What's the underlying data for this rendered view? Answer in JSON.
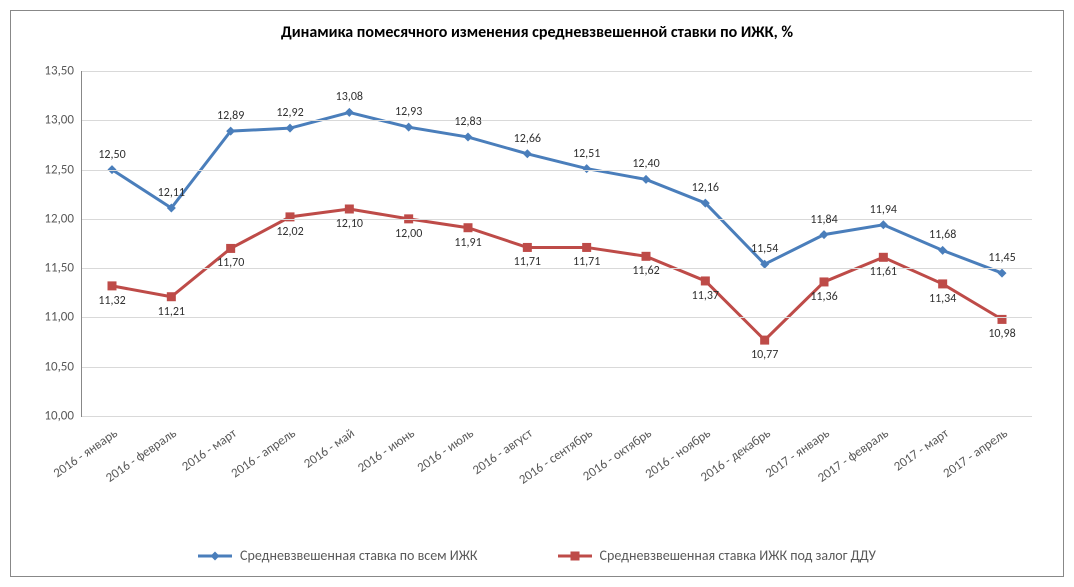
{
  "chart": {
    "type": "line",
    "title": "Динамика помесячного изменения средневзвешенной ставки по ИЖК, %",
    "title_fontsize": 16,
    "background_color": "#ffffff",
    "border_color": "#888888",
    "grid_color": "#d9d9d9",
    "axis_color": "#888888",
    "label_color": "#595959",
    "categories": [
      "2016 - январь",
      "2016 - февраль",
      "2016 - март",
      "2016 - апрель",
      "2016 - май",
      "2016 - июнь",
      "2016 - июль",
      "2016 - август",
      "2016 - сентябрь",
      "2016 - октябрь",
      "2016 - ноябрь",
      "2016 - декабрь",
      "2017 - январь",
      "2017 - февраль",
      "2017 - март",
      "2017 - апрель"
    ],
    "y_axis": {
      "min": 10.0,
      "max": 13.5,
      "step": 0.5,
      "ticks": [
        "10,00",
        "10,50",
        "11,00",
        "11,50",
        "12,00",
        "12,50",
        "13,00",
        "13,50"
      ]
    },
    "x_label_rotation_deg": -35,
    "series": [
      {
        "name": "Средневзвешенная ставка по всем ИЖК",
        "color": "#4a7ebb",
        "line_width": 3,
        "marker": "diamond",
        "marker_size": 9,
        "values": [
          12.5,
          12.11,
          12.89,
          12.92,
          13.08,
          12.93,
          12.83,
          12.66,
          12.51,
          12.4,
          12.16,
          11.54,
          11.84,
          11.94,
          11.68,
          11.45
        ],
        "labels": [
          "12,50",
          "12,11",
          "12,89",
          "12,92",
          "13,08",
          "12,93",
          "12,83",
          "12,66",
          "12,51",
          "12,40",
          "12,16",
          "11,54",
          "11,84",
          "11,94",
          "11,68",
          "11,45"
        ],
        "label_offset": "above"
      },
      {
        "name": "Средневзвешенная ставка ИЖК под залог ДДУ",
        "color": "#be4b48",
        "line_width": 3,
        "marker": "square",
        "marker_size": 9,
        "values": [
          11.32,
          11.21,
          11.7,
          12.02,
          12.1,
          12.0,
          11.91,
          11.71,
          11.71,
          11.62,
          11.37,
          10.77,
          11.36,
          11.61,
          11.34,
          10.98
        ],
        "labels": [
          "11,32",
          "11,21",
          "11,70",
          "12,02",
          "12,10",
          "12,00",
          "11,91",
          "11,71",
          "11,71",
          "11,62",
          "11,37",
          "10,77",
          "11,36",
          "11,61",
          "11,34",
          "10,98"
        ],
        "label_offset": "below"
      }
    ],
    "legend_position": "bottom",
    "label_fontsize": 12
  }
}
